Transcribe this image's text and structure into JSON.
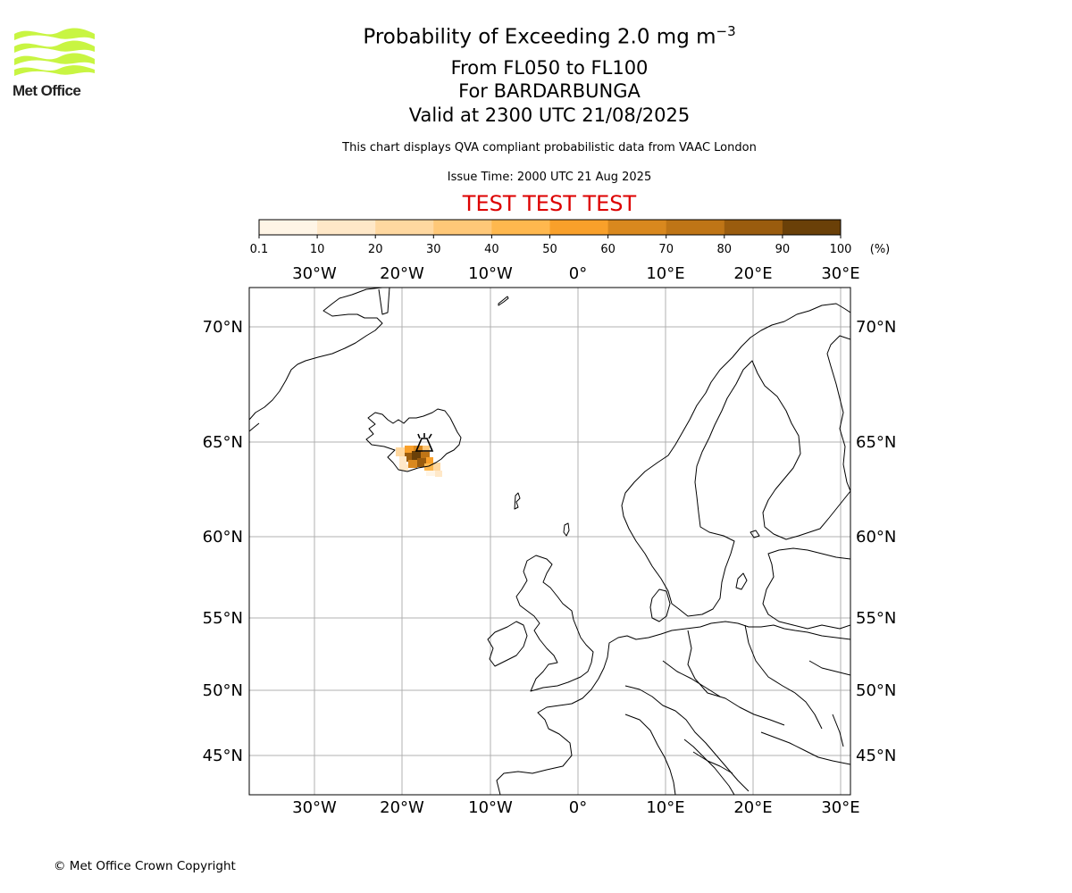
{
  "header": {
    "brand": "Met Office",
    "title_main": "Probability of Exceeding 2.0 mg m",
    "title_unit_exponent": "−3",
    "title_levels": "From FL050 to FL100",
    "title_volcano": "For BARDARBUNGA",
    "title_valid": "Valid at 2300 UTC 21/08/2025",
    "note": "This chart displays QVA compliant probabilistic data from VAAC London",
    "issue_time": "Issue Time: 2000 UTC 21 Aug 2025",
    "test_banner": "TEST TEST TEST"
  },
  "colorbar": {
    "ticks": [
      "0.1",
      "10",
      "20",
      "30",
      "40",
      "50",
      "60",
      "70",
      "80",
      "90",
      "100"
    ],
    "unit": "(%)",
    "colors": [
      "#fff5e6",
      "#ffe8c8",
      "#ffd8a0",
      "#ffc878",
      "#ffb84e",
      "#f9a02a",
      "#d9881e",
      "#bf7516",
      "#9a5c0e",
      "#6a4008"
    ]
  },
  "map": {
    "lon_labels": [
      "30°W",
      "20°W",
      "10°W",
      "0°",
      "10°E",
      "20°E",
      "30°E"
    ],
    "lat_labels": [
      "70°N",
      "65°N",
      "60°N",
      "55°N",
      "50°N",
      "45°N"
    ],
    "volcano": "BARDARBUNGA"
  },
  "footer": {
    "copyright": "© Met Office Crown Copyright"
  }
}
